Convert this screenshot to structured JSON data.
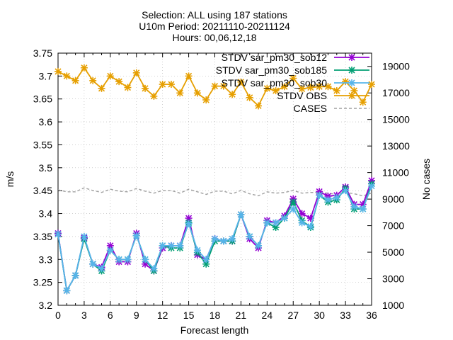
{
  "chart_data": {
    "type": "line",
    "title_lines": [
      "Selection: ALL using   187 stations",
      "U10m   Period: 20211110-20211124",
      "Hours: 00,06,12,18"
    ],
    "xlabel": "Forecast length",
    "ylabel": "m/s",
    "y2label": "No cases",
    "xlim": [
      0,
      36
    ],
    "ylim": [
      3.2,
      3.75
    ],
    "y2lim": [
      1000,
      20000
    ],
    "x_ticks": [
      "0",
      "3",
      "6",
      "9",
      "12",
      "15",
      "18",
      "21",
      "24",
      "27",
      "30",
      "33",
      "36"
    ],
    "y_ticks": [
      "3.2",
      "3.25",
      "3.3",
      "3.35",
      "3.4",
      "3.45",
      "3.5",
      "3.55",
      "3.6",
      "3.65",
      "3.7",
      "3.75"
    ],
    "y2_ticks": [
      "1000",
      "3000",
      "5000",
      "7000",
      "9000",
      "11000",
      "13000",
      "15000",
      "17000",
      "19000"
    ],
    "grid": true,
    "legend_position": "top-right",
    "x": [
      0,
      1,
      2,
      3,
      4,
      5,
      6,
      7,
      8,
      9,
      10,
      11,
      12,
      13,
      14,
      15,
      16,
      17,
      18,
      19,
      20,
      21,
      22,
      23,
      24,
      25,
      26,
      27,
      28,
      29,
      30,
      31,
      32,
      33,
      34,
      35,
      36
    ],
    "series": [
      {
        "name": "STDV sar_pm30_sob12",
        "color": "#9400d3",
        "axis": "y",
        "marker": "x",
        "values": [
          3.357,
          3.232,
          3.265,
          3.347,
          3.29,
          3.283,
          3.33,
          3.295,
          3.295,
          3.357,
          3.29,
          3.275,
          3.325,
          3.33,
          3.33,
          3.39,
          3.31,
          3.3,
          3.345,
          3.34,
          3.34,
          3.398,
          3.345,
          3.325,
          3.385,
          3.38,
          3.395,
          3.432,
          3.4,
          3.39,
          3.448,
          3.438,
          3.44,
          3.458,
          3.42,
          3.42,
          3.472
        ]
      },
      {
        "name": "STDV sar_pm30_sob185",
        "color": "#009e73",
        "axis": "y",
        "marker": "x",
        "values": [
          3.355,
          3.232,
          3.265,
          3.345,
          3.29,
          3.275,
          3.32,
          3.3,
          3.3,
          3.352,
          3.3,
          3.275,
          3.33,
          3.325,
          3.325,
          3.38,
          3.315,
          3.29,
          3.34,
          3.34,
          3.34,
          3.398,
          3.35,
          3.33,
          3.38,
          3.37,
          3.39,
          3.425,
          3.385,
          3.37,
          3.44,
          3.425,
          3.43,
          3.455,
          3.41,
          3.41,
          3.465
        ]
      },
      {
        "name": "STDV sar_pm30_sob30",
        "color": "#56b4e9",
        "axis": "y",
        "marker": "x",
        "values": [
          3.355,
          3.232,
          3.265,
          3.35,
          3.29,
          3.28,
          3.32,
          3.3,
          3.3,
          3.352,
          3.3,
          3.28,
          3.33,
          3.33,
          3.33,
          3.378,
          3.32,
          3.3,
          3.345,
          3.34,
          3.345,
          3.398,
          3.35,
          3.33,
          3.38,
          3.38,
          3.39,
          3.41,
          3.38,
          3.372,
          3.44,
          3.43,
          3.435,
          3.45,
          3.415,
          3.41,
          3.46
        ]
      },
      {
        "name": "STDV OBS",
        "color": "#e69f00",
        "axis": "y",
        "marker": "x",
        "values": [
          3.71,
          3.7,
          3.69,
          3.718,
          3.69,
          3.673,
          3.7,
          3.688,
          3.675,
          3.707,
          3.673,
          3.656,
          3.682,
          3.682,
          3.663,
          3.7,
          3.663,
          3.648,
          3.678,
          3.678,
          3.66,
          3.687,
          3.653,
          3.635,
          3.673,
          3.668,
          3.677,
          3.695,
          3.672,
          3.675,
          3.677,
          3.677,
          3.668,
          3.688,
          3.668,
          3.643,
          3.682
        ]
      },
      {
        "name": "CASES",
        "color": "#a0a0a0",
        "axis": "y2",
        "marker": "none",
        "dashed": true,
        "values": [
          9700,
          9550,
          9550,
          9850,
          9650,
          9500,
          9750,
          9600,
          9550,
          9800,
          9600,
          9450,
          9650,
          9650,
          9450,
          9750,
          9550,
          9350,
          9600,
          9600,
          9400,
          9650,
          9400,
          9250,
          9550,
          9450,
          9500,
          9650,
          9450,
          9500,
          9500,
          9450,
          9350,
          9500,
          9400,
          9250,
          9450
        ]
      }
    ]
  }
}
